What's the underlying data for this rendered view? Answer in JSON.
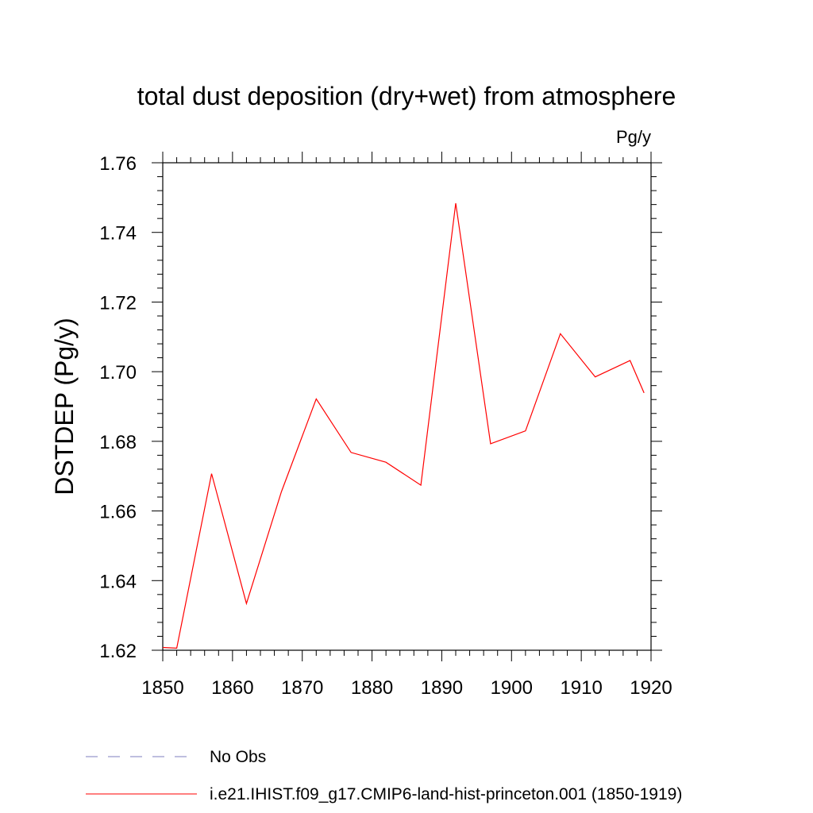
{
  "chart_data": {
    "type": "line",
    "title": "total dust deposition (dry+wet) from atmosphere",
    "units": "Pg/y",
    "ylabel": "DSTDEP  (Pg/y)",
    "xlabel": "",
    "xlim": [
      1850,
      1920
    ],
    "ylim": [
      1.62,
      1.76
    ],
    "xticks": [
      "1850",
      "1860",
      "1870",
      "1880",
      "1890",
      "1900",
      "1910",
      "1920"
    ],
    "yticks": [
      "1.62",
      "1.64",
      "1.66",
      "1.68",
      "1.70",
      "1.72",
      "1.74",
      "1.76"
    ],
    "series": [
      {
        "name": "i.e21.IHIST.f09_g17.CMIP6-land-hist-princeton.001 (1850-1919)",
        "color": "#ff0000",
        "x": [
          1850,
          1852,
          1857,
          1862,
          1867,
          1872,
          1877,
          1882,
          1887,
          1892,
          1897,
          1902,
          1907,
          1912,
          1917,
          1919
        ],
        "y": [
          1.6208,
          1.6206,
          1.6707,
          1.6334,
          1.6655,
          1.6922,
          1.6768,
          1.674,
          1.6674,
          1.7484,
          1.6793,
          1.683,
          1.7109,
          1.6985,
          1.7032,
          1.6939
        ]
      }
    ],
    "legend": [
      {
        "label": "No Obs",
        "style": "dashed",
        "color": "#7f7fbf"
      },
      {
        "label": "i.e21.IHIST.f09_g17.CMIP6-land-hist-princeton.001 (1850-1919)",
        "style": "solid",
        "color": "#ff0000"
      }
    ],
    "grid": false,
    "legend_position": "bottom"
  }
}
